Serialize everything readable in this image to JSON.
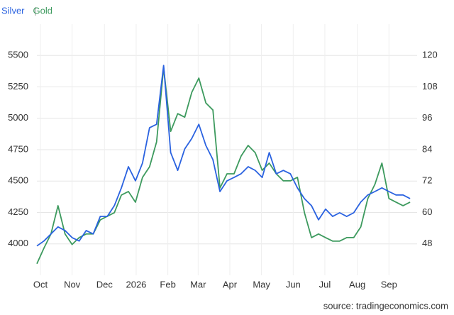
{
  "chart_data": {
    "type": "line",
    "source": "source: tradingeconomics.com",
    "grid": true,
    "xlim": [
      0,
      54
    ],
    "xticks": [
      {
        "value": 0.5,
        "label": "Oct"
      },
      {
        "value": 5.0,
        "label": "Nov"
      },
      {
        "value": 9.6,
        "label": "Dec"
      },
      {
        "value": 14.1,
        "label": "2026"
      },
      {
        "value": 18.6,
        "label": "Feb"
      },
      {
        "value": 22.9,
        "label": "Mar"
      },
      {
        "value": 27.4,
        "label": "Apr"
      },
      {
        "value": 31.9,
        "label": "May"
      },
      {
        "value": 36.4,
        "label": "Jun"
      },
      {
        "value": 40.9,
        "label": "Jul"
      },
      {
        "value": 45.5,
        "label": "Aug"
      },
      {
        "value": 50.0,
        "label": "Sep"
      }
    ],
    "ylim": [
      3750,
      5750
    ],
    "yticks": [
      4000,
      4250,
      4500,
      4750,
      5000,
      5250,
      5500
    ],
    "y2lim": [
      36,
      132
    ],
    "y2ticks": [
      48,
      60,
      72,
      84,
      96,
      108,
      120
    ],
    "series": [
      {
        "name": "Silver",
        "color": "#2a62e0",
        "axis": "y2",
        "values": [
          47.2,
          49.1,
          51.8,
          54.5,
          53.1,
          50.4,
          49.1,
          53.1,
          51.8,
          58.5,
          58.5,
          62.6,
          69.4,
          77.5,
          72.1,
          78.9,
          92.4,
          93.7,
          116.2,
          82.9,
          76.1,
          84.3,
          88.3,
          93.7,
          85.6,
          80.2,
          68.0,
          72.1,
          73.4,
          74.8,
          77.5,
          76.1,
          73.4,
          82.9,
          74.8,
          76.1,
          74.8,
          69.4,
          65.3,
          62.6,
          57.2,
          61.3,
          58.5,
          59.9,
          58.5,
          59.9,
          64.0,
          66.7,
          68.0,
          69.4,
          68.0,
          66.7,
          66.7,
          65.3
        ]
      },
      {
        "name": "Gold",
        "color": "#3d9a5e",
        "axis": "y",
        "values": [
          3842,
          3966,
          4079,
          4304,
          4079,
          3995,
          4050,
          4079,
          4079,
          4191,
          4220,
          4248,
          4389,
          4417,
          4332,
          4530,
          4614,
          4812,
          5404,
          4896,
          5037,
          5009,
          5207,
          5320,
          5122,
          5066,
          4445,
          4558,
          4558,
          4699,
          4784,
          4727,
          4586,
          4643,
          4558,
          4502,
          4502,
          4530,
          4248,
          4050,
          4079,
          4050,
          4022,
          4022,
          4050,
          4050,
          4135,
          4361,
          4473,
          4643,
          4361,
          4332,
          4304,
          4332
        ]
      }
    ]
  }
}
